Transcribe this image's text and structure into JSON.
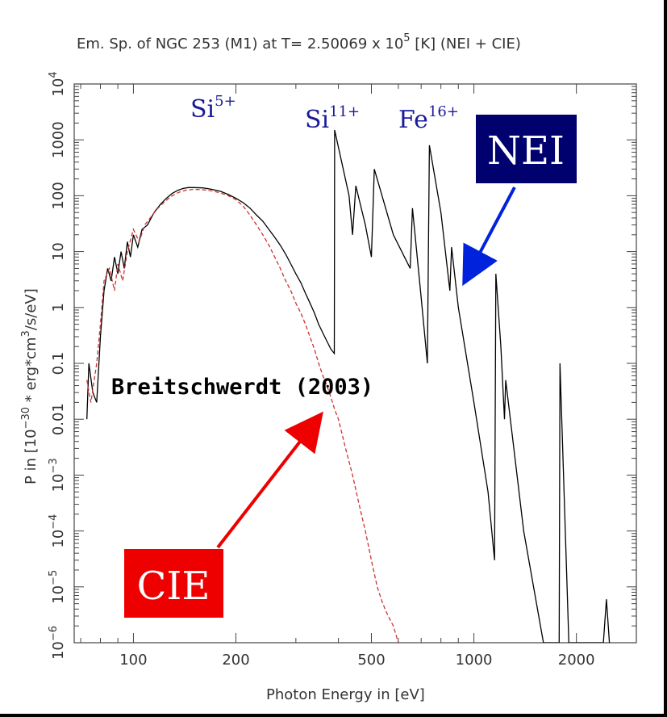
{
  "chart_data": {
    "type": "line",
    "title": {
      "prefix": "Em. Sp. of NGC 253 (M1) at T= 2.50069 x 10",
      "exponent": "5",
      "suffix": " [K] (NEI + CIE)"
    },
    "xlabel": "Photon Energy in [eV]",
    "ylabel": {
      "prefix": "P in [10",
      "exp1": "−30",
      "middle": " * erg*cm",
      "exp2": "3",
      "suffix": "/s/eV]"
    },
    "xscale": "log",
    "yscale": "log",
    "xlim": [
      67,
      3000
    ],
    "ylim": [
      1e-06,
      10000
    ],
    "xticks": [
      {
        "value": 100,
        "label": "100"
      },
      {
        "value": 200,
        "label": "200"
      },
      {
        "value": 500,
        "label": "500"
      },
      {
        "value": 1000,
        "label": "1000"
      },
      {
        "value": 2000,
        "label": "2000"
      }
    ],
    "yticks": [
      {
        "value": 1e-06,
        "base": "10",
        "exp": "−6"
      },
      {
        "value": 1e-05,
        "base": "10",
        "exp": "−5"
      },
      {
        "value": 0.0001,
        "base": "10",
        "exp": "−4"
      },
      {
        "value": 0.001,
        "base": "10",
        "exp": "−3"
      },
      {
        "value": 0.01,
        "base": "0.01",
        "exp": ""
      },
      {
        "value": 0.1,
        "base": "0.1",
        "exp": ""
      },
      {
        "value": 1,
        "base": "1",
        "exp": ""
      },
      {
        "value": 10,
        "base": "10",
        "exp": ""
      },
      {
        "value": 100,
        "base": "100",
        "exp": ""
      },
      {
        "value": 1000,
        "base": "1000",
        "exp": ""
      },
      {
        "value": 10000,
        "base": "10",
        "exp": "4"
      }
    ],
    "series": [
      {
        "name": "NEI",
        "color": "#000000",
        "style": "solid",
        "points": [
          [
            73,
            0.01
          ],
          [
            74,
            0.1
          ],
          [
            76,
            0.03
          ],
          [
            78,
            0.02
          ],
          [
            80,
            0.3
          ],
          [
            82,
            2
          ],
          [
            84,
            5
          ],
          [
            86,
            3
          ],
          [
            88,
            8
          ],
          [
            90,
            4
          ],
          [
            92,
            10
          ],
          [
            94,
            5
          ],
          [
            96,
            15
          ],
          [
            98,
            8
          ],
          [
            100,
            20
          ],
          [
            103,
            12
          ],
          [
            106,
            25
          ],
          [
            110,
            30
          ],
          [
            115,
            50
          ],
          [
            120,
            70
          ],
          [
            125,
            90
          ],
          [
            130,
            110
          ],
          [
            135,
            125
          ],
          [
            140,
            135
          ],
          [
            145,
            140
          ],
          [
            150,
            140
          ],
          [
            160,
            138
          ],
          [
            170,
            130
          ],
          [
            180,
            120
          ],
          [
            190,
            105
          ],
          [
            200,
            90
          ],
          [
            210,
            75
          ],
          [
            220,
            60
          ],
          [
            230,
            45
          ],
          [
            240,
            35
          ],
          [
            250,
            25
          ],
          [
            260,
            18
          ],
          [
            270,
            13
          ],
          [
            280,
            9
          ],
          [
            290,
            6
          ],
          [
            300,
            4
          ],
          [
            310,
            2.8
          ],
          [
            320,
            1.8
          ],
          [
            330,
            1.2
          ],
          [
            340,
            0.8
          ],
          [
            350,
            0.5
          ],
          [
            360,
            0.35
          ],
          [
            370,
            0.25
          ],
          [
            380,
            0.18
          ],
          [
            389,
            0.15
          ],
          [
            390,
            1500
          ],
          [
            430,
            100
          ],
          [
            440,
            20
          ],
          [
            450,
            150
          ],
          [
            480,
            30
          ],
          [
            500,
            8
          ],
          [
            510,
            300
          ],
          [
            580,
            20
          ],
          [
            650,
            5
          ],
          [
            660,
            60
          ],
          [
            700,
            1.5
          ],
          [
            730,
            0.1
          ],
          [
            740,
            800
          ],
          [
            800,
            50
          ],
          [
            850,
            2
          ],
          [
            860,
            12
          ],
          [
            900,
            1
          ],
          [
            1000,
            0.02
          ],
          [
            1100,
            0.0005
          ],
          [
            1150,
            3e-05
          ],
          [
            1160,
            4
          ],
          [
            1200,
            0.2
          ],
          [
            1230,
            0.01
          ],
          [
            1240,
            0.05
          ],
          [
            1400,
            0.0001
          ],
          [
            1600,
            1e-06
          ],
          [
            1780,
            1e-06
          ],
          [
            1790,
            0.1
          ],
          [
            1900,
            1e-06
          ],
          [
            1980,
            1e-06
          ],
          [
            2050,
            1e-06
          ],
          [
            2400,
            1e-06
          ],
          [
            2450,
            6e-06
          ],
          [
            2500,
            1e-06
          ]
        ]
      },
      {
        "name": "CIE",
        "color": "#cc3333",
        "style": "dashed",
        "points": [
          [
            73,
            0.05
          ],
          [
            75,
            0.02
          ],
          [
            78,
            0.1
          ],
          [
            80,
            0.5
          ],
          [
            82,
            3
          ],
          [
            85,
            5
          ],
          [
            88,
            2
          ],
          [
            90,
            6
          ],
          [
            93,
            3
          ],
          [
            96,
            10
          ],
          [
            100,
            25
          ],
          [
            104,
            15
          ],
          [
            108,
            30
          ],
          [
            112,
            40
          ],
          [
            118,
            60
          ],
          [
            124,
            80
          ],
          [
            130,
            100
          ],
          [
            136,
            115
          ],
          [
            142,
            125
          ],
          [
            150,
            130
          ],
          [
            160,
            128
          ],
          [
            170,
            122
          ],
          [
            180,
            112
          ],
          [
            190,
            100
          ],
          [
            200,
            85
          ],
          [
            210,
            65
          ],
          [
            220,
            45
          ],
          [
            230,
            30
          ],
          [
            240,
            20
          ],
          [
            250,
            13
          ],
          [
            260,
            8
          ],
          [
            270,
            5
          ],
          [
            280,
            3
          ],
          [
            290,
            2
          ],
          [
            300,
            1.2
          ],
          [
            310,
            0.8
          ],
          [
            320,
            0.5
          ],
          [
            330,
            0.3
          ],
          [
            340,
            0.18
          ],
          [
            350,
            0.1
          ],
          [
            360,
            0.06
          ],
          [
            370,
            0.04
          ],
          [
            380,
            0.025
          ],
          [
            390,
            0.015
          ],
          [
            400,
            0.01
          ],
          [
            420,
            0.003
          ],
          [
            440,
            0.001
          ],
          [
            460,
            0.0003
          ],
          [
            480,
            0.0001
          ],
          [
            500,
            3e-05
          ],
          [
            520,
            1e-05
          ],
          [
            540,
            5e-06
          ],
          [
            560,
            3e-06
          ],
          [
            580,
            2e-06
          ],
          [
            600,
            1e-06
          ]
        ]
      }
    ],
    "annotations": {
      "ions": [
        {
          "base": "Si",
          "sup": "5+"
        },
        {
          "base": "Si",
          "sup": "11+"
        },
        {
          "base": "Fe",
          "sup": "16+"
        }
      ],
      "nei_box": {
        "label": "NEI",
        "color": "#00006e"
      },
      "cie_box": {
        "label": "CIE",
        "color": "#ee0000"
      },
      "credit": "Breitschwerdt (2003)",
      "arrow_colors": {
        "nei": "#0022dd",
        "cie": "#ee0000"
      }
    }
  }
}
